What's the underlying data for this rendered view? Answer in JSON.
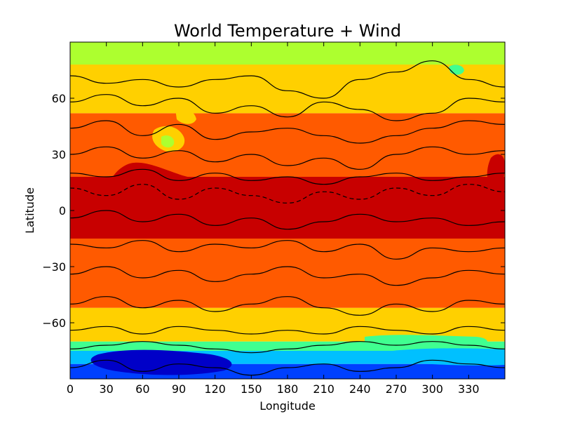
{
  "chart_data": {
    "type": "heatmap",
    "title": "World Temperature + Wind",
    "xlabel": "Longitude",
    "ylabel": "Latitude",
    "xlim": [
      0,
      360
    ],
    "ylim": [
      -90,
      90
    ],
    "x_ticks": [
      0,
      30,
      60,
      90,
      120,
      150,
      180,
      210,
      240,
      270,
      300,
      330
    ],
    "x_tick_labels": [
      "0",
      "30",
      "60",
      "90",
      "120",
      "150",
      "180",
      "210",
      "240",
      "270",
      "300",
      "330"
    ],
    "y_ticks": [
      60,
      30,
      0,
      -30,
      -60
    ],
    "y_tick_labels": [
      "60",
      "30",
      "0",
      "−30",
      "−60"
    ],
    "grid": false,
    "colormap": "jet",
    "fill_colors": [
      "#0000c8",
      "#0040ff",
      "#00c0ff",
      "#40ff90",
      "#adff2f",
      "#ffd000",
      "#ff5a00",
      "#c80000"
    ],
    "filled_bands": [
      {
        "lat": [
          -90,
          -82
        ],
        "color": "#0040ff"
      },
      {
        "lat": [
          -82,
          -75
        ],
        "color": "#00c0ff"
      },
      {
        "lat": [
          -75,
          -70
        ],
        "color": "#40ff90"
      },
      {
        "lat": [
          -70,
          -52
        ],
        "color": "#ffd000"
      },
      {
        "lat": [
          -52,
          -15
        ],
        "color": "#ff5a00"
      },
      {
        "lat": [
          -15,
          18
        ],
        "color": "#c80000"
      },
      {
        "lat": [
          18,
          52
        ],
        "color": "#ff5a00"
      },
      {
        "lat": [
          52,
          78
        ],
        "color": "#ffd000"
      },
      {
        "lat": [
          78,
          90
        ],
        "color": "#adff2f"
      }
    ],
    "contour_lines": [
      {
        "style": "solid",
        "points": [
          [
            0,
            72
          ],
          [
            30,
            68
          ],
          [
            60,
            70
          ],
          [
            90,
            66
          ],
          [
            120,
            70
          ],
          [
            150,
            72
          ],
          [
            180,
            64
          ],
          [
            210,
            60
          ],
          [
            240,
            70
          ],
          [
            270,
            74
          ],
          [
            300,
            80
          ],
          [
            330,
            70
          ],
          [
            360,
            66
          ]
        ]
      },
      {
        "style": "solid",
        "points": [
          [
            0,
            58
          ],
          [
            30,
            62
          ],
          [
            60,
            56
          ],
          [
            90,
            60
          ],
          [
            120,
            52
          ],
          [
            150,
            56
          ],
          [
            180,
            50
          ],
          [
            210,
            58
          ],
          [
            240,
            54
          ],
          [
            270,
            48
          ],
          [
            300,
            52
          ],
          [
            330,
            60
          ],
          [
            360,
            58
          ]
        ]
      },
      {
        "style": "solid",
        "points": [
          [
            0,
            44
          ],
          [
            30,
            48
          ],
          [
            60,
            40
          ],
          [
            90,
            46
          ],
          [
            120,
            38
          ],
          [
            150,
            42
          ],
          [
            180,
            44
          ],
          [
            210,
            40
          ],
          [
            240,
            36
          ],
          [
            270,
            40
          ],
          [
            300,
            44
          ],
          [
            330,
            48
          ],
          [
            360,
            46
          ]
        ]
      },
      {
        "style": "solid",
        "points": [
          [
            0,
            30
          ],
          [
            30,
            34
          ],
          [
            60,
            28
          ],
          [
            90,
            32
          ],
          [
            120,
            26
          ],
          [
            150,
            30
          ],
          [
            180,
            24
          ],
          [
            210,
            28
          ],
          [
            240,
            22
          ],
          [
            270,
            30
          ],
          [
            300,
            34
          ],
          [
            330,
            30
          ],
          [
            360,
            32
          ]
        ]
      },
      {
        "style": "solid",
        "points": [
          [
            0,
            20
          ],
          [
            30,
            18
          ],
          [
            60,
            22
          ],
          [
            90,
            16
          ],
          [
            120,
            20
          ],
          [
            150,
            16
          ],
          [
            180,
            18
          ],
          [
            210,
            14
          ],
          [
            240,
            18
          ],
          [
            270,
            20
          ],
          [
            300,
            16
          ],
          [
            330,
            18
          ],
          [
            360,
            20
          ]
        ]
      },
      {
        "style": "dashed",
        "points": [
          [
            0,
            12
          ],
          [
            30,
            8
          ],
          [
            60,
            14
          ],
          [
            90,
            6
          ],
          [
            120,
            12
          ],
          [
            150,
            8
          ],
          [
            180,
            4
          ],
          [
            210,
            10
          ],
          [
            240,
            6
          ],
          [
            270,
            12
          ],
          [
            300,
            8
          ],
          [
            330,
            14
          ],
          [
            360,
            10
          ]
        ]
      },
      {
        "style": "solid",
        "points": [
          [
            0,
            -4
          ],
          [
            30,
            0
          ],
          [
            60,
            -6
          ],
          [
            90,
            -2
          ],
          [
            120,
            -8
          ],
          [
            150,
            -4
          ],
          [
            180,
            -10
          ],
          [
            210,
            -6
          ],
          [
            240,
            -2
          ],
          [
            270,
            -6
          ],
          [
            300,
            -4
          ],
          [
            330,
            -8
          ],
          [
            360,
            -6
          ]
        ]
      },
      {
        "style": "solid",
        "points": [
          [
            0,
            -18
          ],
          [
            30,
            -20
          ],
          [
            60,
            -16
          ],
          [
            90,
            -22
          ],
          [
            120,
            -18
          ],
          [
            150,
            -20
          ],
          [
            180,
            -16
          ],
          [
            210,
            -22
          ],
          [
            240,
            -18
          ],
          [
            270,
            -26
          ],
          [
            300,
            -20
          ],
          [
            330,
            -22
          ],
          [
            360,
            -20
          ]
        ]
      },
      {
        "style": "solid",
        "points": [
          [
            0,
            -34
          ],
          [
            30,
            -30
          ],
          [
            60,
            -36
          ],
          [
            90,
            -32
          ],
          [
            120,
            -38
          ],
          [
            150,
            -34
          ],
          [
            180,
            -30
          ],
          [
            210,
            -36
          ],
          [
            240,
            -34
          ],
          [
            270,
            -40
          ],
          [
            300,
            -36
          ],
          [
            330,
            -32
          ],
          [
            360,
            -34
          ]
        ]
      },
      {
        "style": "solid",
        "points": [
          [
            0,
            -50
          ],
          [
            30,
            -46
          ],
          [
            60,
            -52
          ],
          [
            90,
            -48
          ],
          [
            120,
            -54
          ],
          [
            150,
            -50
          ],
          [
            180,
            -46
          ],
          [
            210,
            -52
          ],
          [
            240,
            -56
          ],
          [
            270,
            -50
          ],
          [
            300,
            -54
          ],
          [
            330,
            -48
          ],
          [
            360,
            -50
          ]
        ]
      },
      {
        "style": "solid",
        "points": [
          [
            0,
            -64
          ],
          [
            30,
            -62
          ],
          [
            60,
            -66
          ],
          [
            90,
            -62
          ],
          [
            120,
            -64
          ],
          [
            150,
            -66
          ],
          [
            180,
            -64
          ],
          [
            210,
            -66
          ],
          [
            240,
            -62
          ],
          [
            270,
            -64
          ],
          [
            300,
            -66
          ],
          [
            330,
            -62
          ],
          [
            360,
            -64
          ]
        ]
      },
      {
        "style": "solid",
        "points": [
          [
            0,
            -74
          ],
          [
            30,
            -72
          ],
          [
            60,
            -70
          ],
          [
            90,
            -72
          ],
          [
            120,
            -74
          ],
          [
            150,
            -76
          ],
          [
            180,
            -74
          ],
          [
            210,
            -72
          ],
          [
            240,
            -70
          ],
          [
            270,
            -72
          ],
          [
            300,
            -70
          ],
          [
            330,
            -72
          ],
          [
            360,
            -74
          ]
        ]
      },
      {
        "style": "solid",
        "points": [
          [
            0,
            -84
          ],
          [
            30,
            -80
          ],
          [
            60,
            -86
          ],
          [
            90,
            -82
          ],
          [
            120,
            -84
          ],
          [
            150,
            -88
          ],
          [
            180,
            -84
          ],
          [
            210,
            -82
          ],
          [
            240,
            -86
          ],
          [
            270,
            -84
          ],
          [
            300,
            -80
          ],
          [
            330,
            -82
          ],
          [
            360,
            -84
          ]
        ]
      }
    ]
  }
}
